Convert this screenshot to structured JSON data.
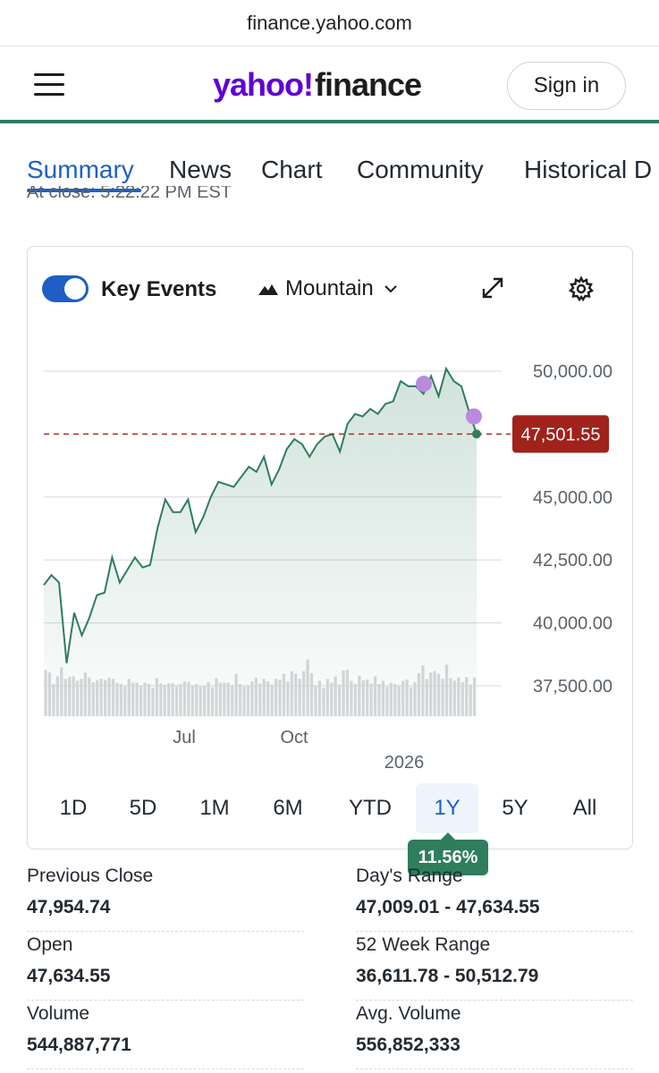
{
  "browser": {
    "url": "finance.yahoo.com"
  },
  "header": {
    "logo_main": "yahoo!",
    "logo_sub": "finance",
    "sign_in": "Sign in",
    "accent_color": "#6001d2",
    "rule_color": "#2f7d5c"
  },
  "tabs": [
    {
      "label": "Summary",
      "active": true
    },
    {
      "label": "News"
    },
    {
      "label": "Chart"
    },
    {
      "label": "Community"
    },
    {
      "label": "Historical D"
    }
  ],
  "at_close": "At close: 5:22:22 PM EST",
  "chart_controls": {
    "key_events_label": "Key Events",
    "key_events_on": true,
    "chart_type_label": "Mountain",
    "icons": [
      "mountain-icon",
      "chevron-down-icon",
      "expand-icon",
      "gear-icon"
    ]
  },
  "chart_data": {
    "type": "area",
    "ylim": [
      37000,
      50500
    ],
    "y_ticks": [
      "50,000.00",
      "45,000.00",
      "42,500.00",
      "40,000.00",
      "37,500.00"
    ],
    "x_ticks": [
      "Jul",
      "Oct",
      "2026"
    ],
    "current_price": 47501.55,
    "current_price_label": "47,501.55",
    "series": [
      {
        "values": [
          41500,
          41900,
          41600,
          38400,
          40400,
          39500,
          40200,
          41100,
          41200,
          42600,
          41600,
          42100,
          42600,
          42200,
          42300,
          43800,
          44900,
          44400,
          44400,
          44900,
          43600,
          44200,
          45000,
          45600,
          45500,
          45400,
          45800,
          46200,
          46000,
          46600,
          45500,
          46100,
          46900,
          47300,
          47100,
          46600,
          47100,
          47400,
          47500,
          46800,
          47900,
          48300,
          48200,
          48500,
          48300,
          48700,
          48800,
          49600,
          49400,
          49400,
          49100,
          49800,
          49000,
          50100,
          49600,
          49400,
          48400,
          47500
        ]
      }
    ],
    "volume": [
      72,
      68,
      50,
      62,
      76,
      58,
      61,
      62,
      55,
      58,
      68,
      60,
      53,
      56,
      58,
      56,
      60,
      58,
      52,
      50,
      46,
      58,
      52,
      52,
      47,
      52,
      50,
      44,
      59,
      51,
      49,
      51,
      51,
      46,
      50,
      54,
      53,
      48,
      50,
      46,
      47,
      53,
      45,
      59,
      52,
      52,
      52,
      48,
      66,
      50,
      46,
      48,
      54,
      60,
      51,
      58,
      54,
      49,
      58,
      57,
      66,
      54,
      70,
      66,
      58,
      70,
      88,
      67,
      47,
      55,
      44,
      58,
      52,
      62,
      49,
      71,
      72,
      55,
      50,
      63,
      56,
      57,
      51,
      62,
      50,
      55,
      46,
      52,
      50,
      47,
      55,
      57,
      45,
      53,
      67,
      79,
      58,
      68,
      70,
      66,
      58,
      80,
      59,
      55,
      60,
      53,
      61,
      49,
      60
    ],
    "key_events": [
      49500,
      48200
    ],
    "line_color": "#2f7d5c",
    "price_line_color": "#a1221b",
    "event_color": "#b98ade"
  },
  "ranges": [
    {
      "label": "1D"
    },
    {
      "label": "5D"
    },
    {
      "label": "1M"
    },
    {
      "label": "6M"
    },
    {
      "label": "YTD"
    },
    {
      "label": "1Y",
      "active": true
    },
    {
      "label": "5Y"
    },
    {
      "label": "All"
    }
  ],
  "change_badge": "11.56%",
  "stats": [
    {
      "label": "Previous Close",
      "value": "47,954.74"
    },
    {
      "label": "Day's Range",
      "value": "47,009.01 - 47,634.55"
    },
    {
      "label": "Open",
      "value": "47,634.55"
    },
    {
      "label": "52 Week Range",
      "value": "36,611.78 - 50,512.79"
    },
    {
      "label": "Volume",
      "value": "544,887,771"
    },
    {
      "label": "Avg. Volume",
      "value": "556,852,333"
    }
  ]
}
